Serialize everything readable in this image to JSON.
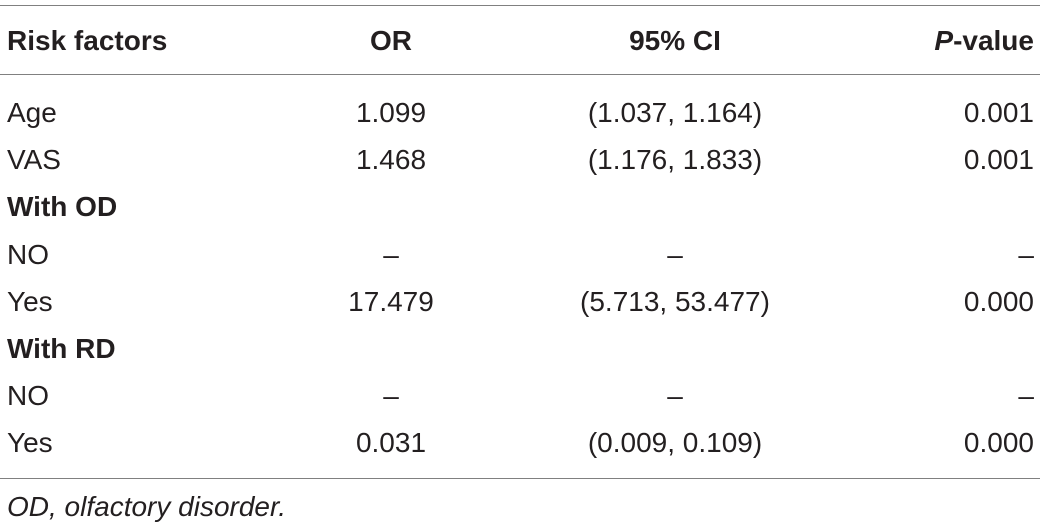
{
  "table": {
    "header": {
      "col1": "Risk factors",
      "col2": "OR",
      "col3": "95% CI",
      "col4_italic": "P",
      "col4_rest": "-value"
    },
    "rows": [
      {
        "label": "Age",
        "or": "1.099",
        "ci": "(1.037, 1.164)",
        "p": "0.001",
        "bold": false
      },
      {
        "label": "VAS",
        "or": "1.468",
        "ci": "(1.176, 1.833)",
        "p": "0.001",
        "bold": false
      },
      {
        "label": "With OD",
        "or": "",
        "ci": "",
        "p": "",
        "bold": true
      },
      {
        "label": "NO",
        "or": "–",
        "ci": "–",
        "p": "–",
        "bold": false
      },
      {
        "label": "Yes",
        "or": "17.479",
        "ci": "(5.713, 53.477)",
        "p": "0.000",
        "bold": false
      },
      {
        "label": "With RD",
        "or": "",
        "ci": "",
        "p": "",
        "bold": true
      },
      {
        "label": "NO",
        "or": "–",
        "ci": "–",
        "p": "–",
        "bold": false
      },
      {
        "label": "Yes",
        "or": "0.031",
        "ci": "(0.009, 0.109)",
        "p": "0.000",
        "bold": false
      }
    ]
  },
  "footnote": "OD, olfactory disorder."
}
